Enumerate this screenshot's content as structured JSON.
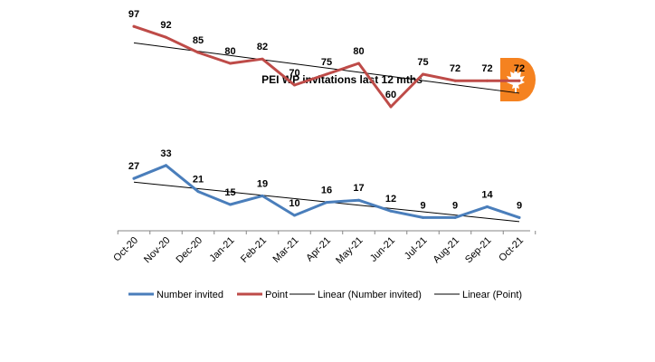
{
  "chart_data": {
    "type": "line",
    "title": "PEI WP invitations last 12 mths",
    "categories": [
      "Oct-20",
      "Nov-20",
      "Dec-20",
      "Jan-21",
      "Feb-21",
      "Mar-21",
      "Apr-21",
      "May-21",
      "Jun-21",
      "Jul-21",
      "Aug-21",
      "Sep-21",
      "Oct-21"
    ],
    "series": [
      {
        "name": "Number invited",
        "values": [
          27,
          33,
          21,
          15,
          19,
          10,
          16,
          17,
          12,
          9,
          9,
          14,
          9
        ],
        "color": "#4a7ebb"
      },
      {
        "name": "Point",
        "values": [
          97,
          92,
          85,
          80,
          82,
          70,
          75,
          80,
          60,
          75,
          72,
          72,
          72
        ],
        "color": "#be4b48"
      }
    ],
    "trendlines": [
      {
        "name": "Linear (Number invited)",
        "of": "Number invited",
        "color": "#000000"
      },
      {
        "name": "Linear (Point)",
        "of": "Point",
        "color": "#000000"
      }
    ],
    "ylim": [
      0,
      100
    ],
    "grid": false,
    "legend": "bottom",
    "logo_color": "#f58220",
    "logo_icon": "maple-leaf-icon"
  }
}
